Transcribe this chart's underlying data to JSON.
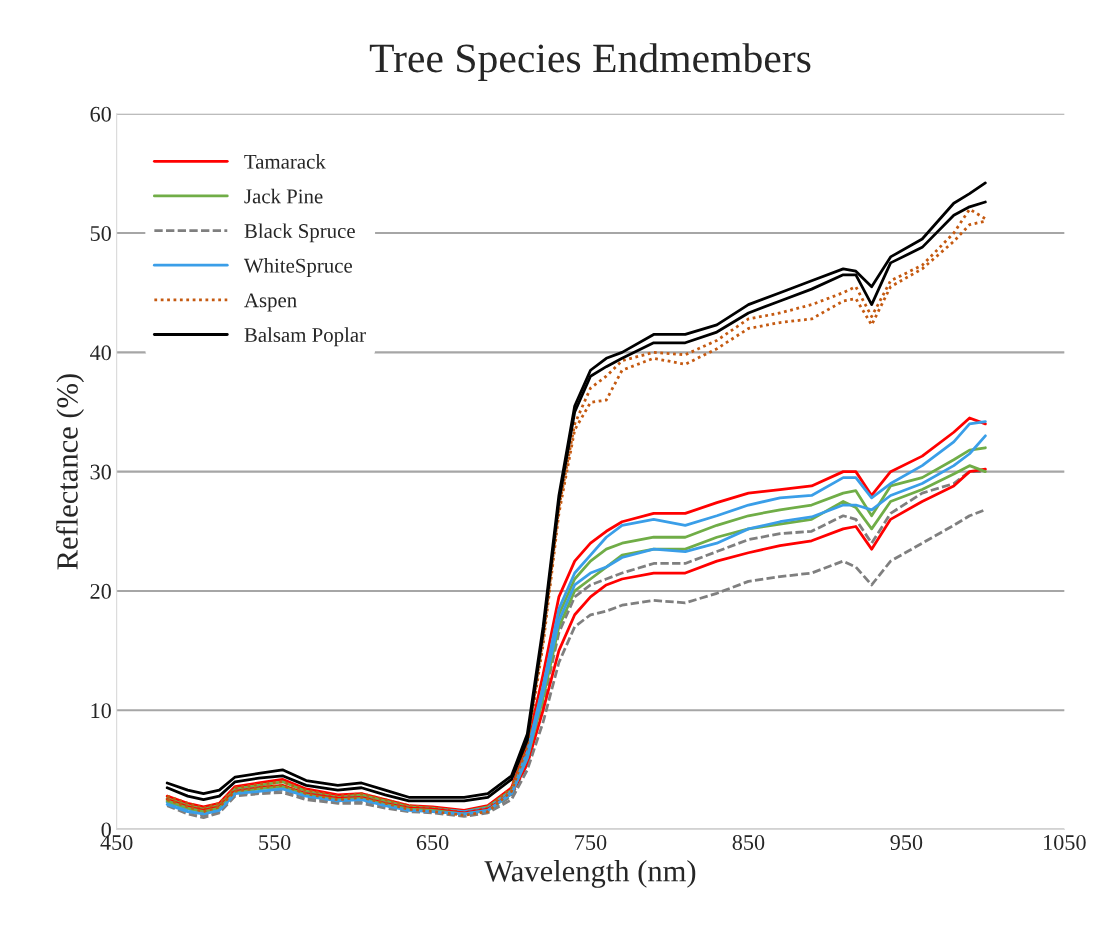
{
  "chart_data": {
    "type": "line",
    "title": "Tree Species Endmembers",
    "xlabel": "Wavelength (nm)",
    "ylabel": "Reflectance (%)",
    "x": [
      482,
      495,
      505,
      515,
      525,
      540,
      555,
      570,
      590,
      605,
      620,
      635,
      650,
      670,
      685,
      700,
      710,
      720,
      730,
      740,
      750,
      760,
      770,
      790,
      810,
      830,
      850,
      870,
      890,
      910,
      918,
      928,
      940,
      960,
      980,
      990,
      1000
    ],
    "xlim": [
      450,
      1050
    ],
    "xticks": [
      450,
      550,
      650,
      750,
      850,
      950,
      1050
    ],
    "ylim": [
      0,
      60
    ],
    "yticks": [
      0,
      10,
      20,
      30,
      40,
      50,
      60
    ],
    "grid": "y",
    "legend": "top left",
    "series": [
      {
        "name": "Tamarack",
        "color": "#ff0000",
        "line_style": "solid",
        "values": [
          2.8,
          2.2,
          1.9,
          2.2,
          3.6,
          3.9,
          4.2,
          3.4,
          2.9,
          3.0,
          2.5,
          2.0,
          1.9,
          1.6,
          2.0,
          3.5,
          7,
          13,
          19.5,
          22.5,
          24,
          25,
          25.8,
          26.5,
          26.5,
          27.4,
          28.2,
          28.5,
          28.8,
          30,
          30.0,
          28.0,
          30.0,
          31.3,
          33.3,
          34.5,
          34.0
        ]
      },
      {
        "name": "Jack Pine",
        "color": "#70ad47",
        "line_style": "solid",
        "values": [
          2.6,
          2.0,
          1.7,
          2.0,
          3.4,
          3.7,
          4.0,
          3.2,
          2.7,
          2.9,
          2.4,
          1.9,
          1.8,
          1.5,
          1.9,
          3.3,
          6.5,
          12,
          18,
          21,
          22.5,
          23.5,
          24,
          24.5,
          24.5,
          25.5,
          26.3,
          26.8,
          27.2,
          28.2,
          28.4,
          26.3,
          28.8,
          29.5,
          31,
          31.8,
          32
        ]
      },
      {
        "name": "Black Spruce",
        "color": "#7f7f7f",
        "line_style": "dashed",
        "values": [
          2.2,
          1.5,
          1.2,
          1.5,
          2.9,
          3.1,
          3.3,
          2.7,
          2.3,
          2.4,
          2.0,
          1.6,
          1.5,
          1.2,
          1.5,
          2.8,
          5.5,
          10.5,
          16.5,
          19.5,
          20.5,
          21,
          21.5,
          22.3,
          22.3,
          23.3,
          24.3,
          24.8,
          25.0,
          26.3,
          26.0,
          24.0,
          26.5,
          28.2,
          29.0,
          30.0,
          30.0
        ]
      },
      {
        "name": "WhiteSpruce",
        "color": "#3a9ee8",
        "line_style": "solid",
        "values": [
          2.3,
          1.7,
          1.5,
          1.8,
          3.2,
          3.5,
          3.6,
          3.0,
          2.6,
          2.7,
          2.2,
          1.8,
          1.7,
          1.5,
          1.8,
          3.2,
          6.5,
          12,
          18.5,
          21.5,
          23,
          24.5,
          25.5,
          26,
          25.5,
          26.3,
          27.2,
          27.8,
          28.0,
          29.5,
          29.5,
          27.8,
          29.0,
          30.5,
          32.5,
          34.0,
          34.2
        ]
      },
      {
        "name": "Aspen",
        "color": "#c55a11",
        "line_style": "dotted",
        "values": [
          2.8,
          2.2,
          1.8,
          2.2,
          3.5,
          3.8,
          4.0,
          3.3,
          2.8,
          3.0,
          2.5,
          2.0,
          1.8,
          1.4,
          1.8,
          3.5,
          7.5,
          16,
          27,
          34,
          37,
          38,
          39.3,
          40.0,
          39.8,
          41,
          42.8,
          43.3,
          44,
          45.0,
          45.5,
          43.0,
          46,
          47.3,
          50.0,
          52,
          51.2
        ]
      },
      {
        "name": "Balsam Poplar",
        "color": "#000000",
        "line_style": "solid",
        "values": [
          3.9,
          3.3,
          3.0,
          3.3,
          4.4,
          4.7,
          5.0,
          4.1,
          3.7,
          3.9,
          3.3,
          2.7,
          2.7,
          2.7,
          3.0,
          4.5,
          8,
          17,
          28,
          35.5,
          38.5,
          39.5,
          40.0,
          41.5,
          41.5,
          42.3,
          44.0,
          45.0,
          46.0,
          47.0,
          46.8,
          45.5,
          48.0,
          49.5,
          52.5,
          53.3,
          54.2
        ]
      },
      {
        "color": "#ff0000",
        "line_style": "solid",
        "values": [
          2.5,
          1.9,
          1.6,
          1.9,
          3.2,
          3.5,
          3.7,
          3.0,
          2.6,
          2.7,
          2.2,
          1.8,
          1.7,
          1.4,
          1.7,
          3.0,
          5.5,
          10,
          15,
          18,
          19.5,
          20.5,
          21.0,
          21.5,
          21.5,
          22.5,
          23.2,
          23.8,
          24.2,
          25.2,
          25.4,
          23.5,
          26.0,
          27.5,
          28.8,
          30.0,
          30.2
        ]
      },
      {
        "color": "#70ad47",
        "line_style": "solid",
        "values": [
          2.4,
          1.8,
          1.5,
          1.8,
          3.1,
          3.4,
          3.6,
          2.9,
          2.5,
          2.6,
          2.1,
          1.7,
          1.6,
          1.3,
          1.6,
          3.0,
          6,
          11,
          17,
          20,
          21,
          22,
          23,
          23.5,
          23.5,
          24.5,
          25.2,
          25.6,
          26.0,
          27.5,
          27.0,
          25.2,
          27.5,
          28.5,
          29.8,
          30.5,
          30.0
        ]
      },
      {
        "color": "#7f7f7f",
        "line_style": "dashed",
        "values": [
          2.0,
          1.3,
          1.0,
          1.4,
          2.8,
          3.0,
          3.1,
          2.5,
          2.2,
          2.2,
          1.8,
          1.5,
          1.4,
          1.1,
          1.4,
          2.5,
          5,
          9,
          14,
          17,
          18,
          18.3,
          18.8,
          19.2,
          19.0,
          19.8,
          20.8,
          21.2,
          21.5,
          22.5,
          22.0,
          20.5,
          22.5,
          24.0,
          25.5,
          26.3,
          26.8
        ]
      },
      {
        "color": "#3a9ee8",
        "line_style": "solid",
        "values": [
          2.1,
          1.5,
          1.3,
          1.6,
          3.0,
          3.2,
          3.4,
          2.8,
          2.4,
          2.5,
          2.0,
          1.6,
          1.5,
          1.3,
          1.6,
          3.0,
          6,
          11.5,
          17.5,
          20.5,
          21.5,
          22.0,
          22.8,
          23.5,
          23.3,
          24.0,
          25.2,
          25.8,
          26.2,
          27.2,
          27.2,
          26.8,
          28.0,
          29.0,
          30.5,
          31.5,
          33.0
        ]
      },
      {
        "color": "#c55a11",
        "line_style": "dotted",
        "values": [
          2.5,
          1.9,
          1.5,
          1.9,
          3.2,
          3.5,
          3.7,
          3.0,
          2.5,
          2.7,
          2.2,
          1.7,
          1.5,
          1.2,
          1.5,
          3.2,
          7,
          15.5,
          26.5,
          33.5,
          35.8,
          36,
          38.5,
          39.5,
          39.0,
          40.3,
          42.0,
          42.5,
          42.8,
          44.3,
          44.5,
          42.3,
          45.5,
          47.0,
          49.3,
          50.7,
          51.0
        ]
      },
      {
        "color": "#000000",
        "line_style": "solid",
        "values": [
          3.5,
          2.8,
          2.5,
          2.8,
          4.0,
          4.3,
          4.5,
          3.7,
          3.3,
          3.5,
          2.9,
          2.4,
          2.4,
          2.4,
          2.7,
          4.2,
          7.5,
          16.5,
          27.5,
          35,
          38.0,
          38.8,
          39.5,
          40.8,
          40.8,
          41.7,
          43.3,
          44.3,
          45.3,
          46.5,
          46.5,
          44.0,
          47.5,
          48.8,
          51.5,
          52.2,
          52.6
        ]
      }
    ]
  }
}
